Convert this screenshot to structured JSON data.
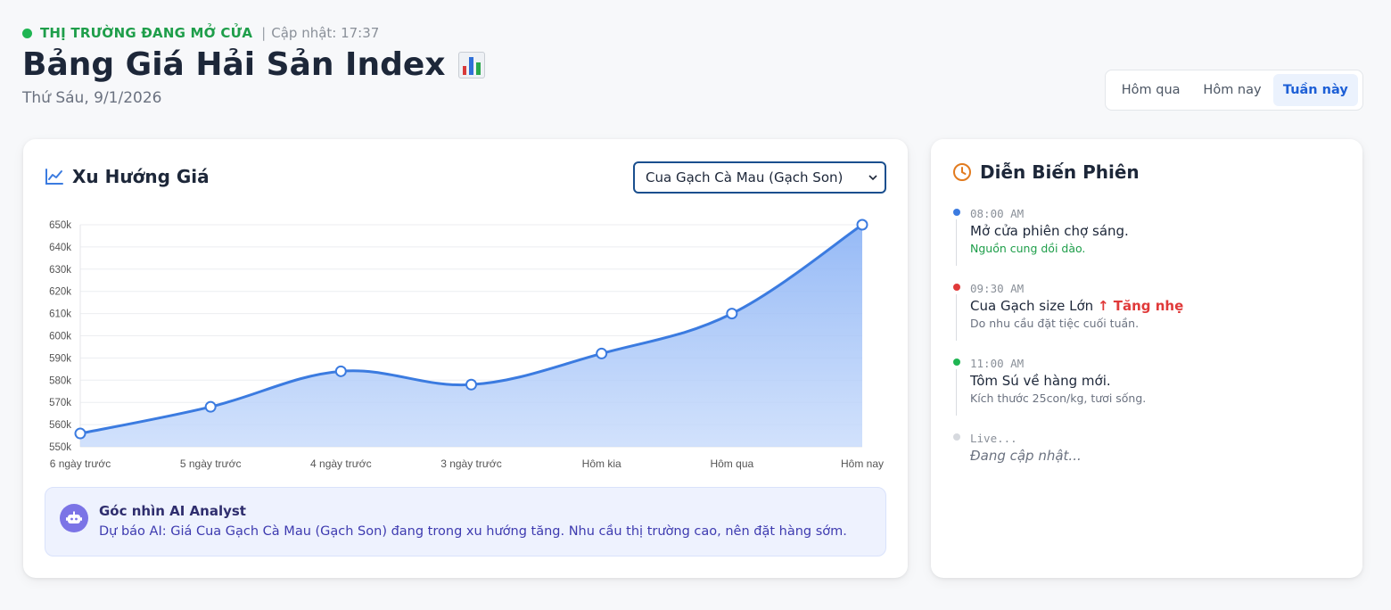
{
  "status": {
    "market_state": "THỊ TRƯỜNG ĐANG MỞ CỬA",
    "separator": "|",
    "update_label": "Cập nhật: 17:37",
    "color": "#1fb552"
  },
  "header": {
    "title": "Bảng Giá Hải Sản Index",
    "title_icon": "bar-chart-icon",
    "date": "Thứ Sáu, 9/1/2026"
  },
  "range_tabs": [
    {
      "label": "Hôm qua",
      "active": false
    },
    {
      "label": "Hôm nay",
      "active": false
    },
    {
      "label": "Tuần này",
      "active": true
    }
  ],
  "trend_card": {
    "title": "Xu Hướng Giá",
    "icon": "trend-line-icon",
    "selected_product": "Cua Gạch Cà Mau (Gạch Son)"
  },
  "chart_data": {
    "type": "area",
    "title": "",
    "categories": [
      "6 ngày trước",
      "5 ngày trước",
      "4 ngày trước",
      "3 ngày trước",
      "Hôm kia",
      "Hôm qua",
      "Hôm nay"
    ],
    "series": [
      {
        "name": "Cua Gạch Cà Mau (Gạch Son)",
        "values": [
          556000,
          568000,
          584000,
          578000,
          592000,
          610000,
          650000
        ]
      }
    ],
    "y_ticks": [
      "550k",
      "560k",
      "570k",
      "580k",
      "590k",
      "600k",
      "610k",
      "620k",
      "630k",
      "640k",
      "650k"
    ],
    "ylim": [
      550000,
      650000
    ],
    "xlabel": "",
    "ylabel": "",
    "grid": true,
    "line_color": "#3b7be0"
  },
  "insight": {
    "title": "Góc nhìn AI Analyst",
    "text": "Dự báo AI: Giá Cua Gạch Cà Mau (Gạch Son) đang trong xu hướng tăng. Nhu cầu thị trường cao, nên đặt hàng sớm.",
    "icon": "robot-icon"
  },
  "session_card": {
    "title": "Diễn Biến Phiên",
    "icon": "clock-icon",
    "events": [
      {
        "time": "08:00 AM",
        "title": "Mở cửa phiên chợ sáng.",
        "badge": "",
        "note": "Nguồn cung dồi dào.",
        "dot_color": "#3b7be0",
        "note_color": "green"
      },
      {
        "time": "09:30 AM",
        "title": "Cua Gạch size Lớn",
        "badge": "↑ Tăng nhẹ",
        "note": "Do nhu cầu đặt tiệc cuối tuần.",
        "dot_color": "#e03a3a",
        "note_color": "gray"
      },
      {
        "time": "11:00 AM",
        "title": "Tôm Sú về hàng mới.",
        "badge": "",
        "note": "Kích thước 25con/kg, tươi sống.",
        "dot_color": "#1fb552",
        "note_color": "gray"
      }
    ],
    "live": {
      "time": "Live...",
      "text": "Đang cập nhật..."
    }
  }
}
